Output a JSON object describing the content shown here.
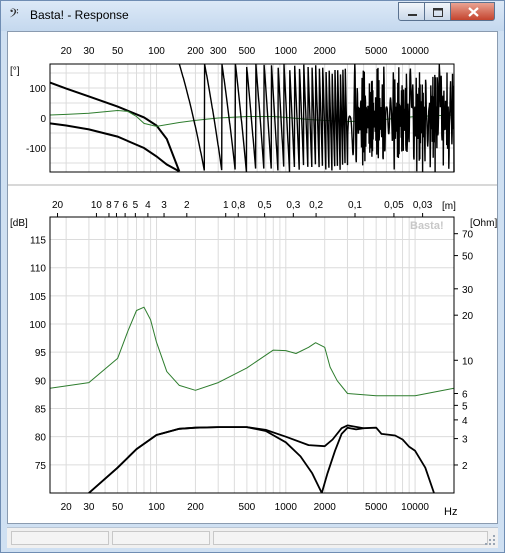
{
  "window": {
    "title": "Basta! - Response",
    "app_icon": "bass-clef-icon",
    "controls": [
      "minimize",
      "maximize",
      "close"
    ]
  },
  "phase_chart": {
    "y_unit": "[°]",
    "y_ticks": [
      "100",
      "0",
      "-100"
    ],
    "x_ticks": [
      "20",
      "30",
      "50",
      "100",
      "200",
      "300",
      "500",
      "1000",
      "2000",
      "5000",
      "10000"
    ]
  },
  "main_chart": {
    "left_unit": "[dB]",
    "right_unit": "[Ohm]",
    "top_unit": "[m]",
    "watermark": "Basta!",
    "db_ticks": [
      "115",
      "110",
      "105",
      "100",
      "95",
      "90",
      "85",
      "80",
      "75"
    ],
    "ohm_ticks": [
      "70",
      "50",
      "30",
      "20",
      "10",
      "6",
      "5",
      "4",
      "3",
      "2"
    ],
    "wavelength_ticks": [
      "20",
      "10",
      "8",
      "7",
      "6",
      "5",
      "4",
      "3",
      "2",
      "1",
      "0,8",
      "0,5",
      "0,3",
      "0,2",
      "0,1",
      "0,05",
      "0,03"
    ],
    "freq_ticks": [
      "20",
      "30",
      "50",
      "100",
      "200",
      "500",
      "1000",
      "2000",
      "5000",
      "10000"
    ],
    "freq_unit": "Hz"
  },
  "chart_data": [
    {
      "type": "line",
      "title": "",
      "xlabel": "",
      "ylabel": "[°]",
      "xscale": "log",
      "xlim": [
        15,
        20000
      ],
      "ylim": [
        -180,
        180
      ],
      "grid": true,
      "series": [
        {
          "color": "#000000",
          "x": [
            15,
            20,
            30,
            50,
            80,
            100,
            120,
            150
          ],
          "y": [
            118,
            98,
            72,
            38,
            2,
            -25,
            -70,
            -178
          ]
        },
        {
          "color": "#000000",
          "x": [
            15,
            20,
            30,
            50,
            80,
            100,
            120,
            150
          ],
          "y": [
            -18,
            -25,
            -38,
            -62,
            -100,
            -128,
            -155,
            -178
          ]
        },
        {
          "color": "#2e7d2e",
          "x": [
            15,
            20,
            30,
            50,
            60,
            70,
            80,
            100,
            150,
            200,
            300,
            500,
            800,
            1000,
            1500,
            2000,
            3000,
            5000,
            10000,
            20000
          ],
          "y": [
            10,
            12,
            16,
            25,
            22,
            5,
            -18,
            -28,
            -15,
            -8,
            0,
            5,
            5,
            2,
            -5,
            -8,
            -12,
            -8,
            5,
            10
          ]
        }
      ]
    },
    {
      "type": "line",
      "title": "",
      "xlabel": "Hz",
      "ylabel": "[dB]",
      "y2label": "[Ohm]",
      "xscale": "log",
      "xlim": [
        15,
        20000
      ],
      "ylim": [
        70,
        119
      ],
      "grid": true,
      "series": [
        {
          "color": "#2e7d2e",
          "axis": "ohm",
          "x": [
            15,
            30,
            50,
            60,
            70,
            80,
            90,
            100,
            120,
            150,
            200,
            300,
            500,
            800,
            1000,
            1200,
            1500,
            1700,
            2000,
            2200,
            2500,
            3000,
            5000,
            10000,
            20000
          ],
          "y": [
            6.5,
            7.1,
            10.3,
            15.6,
            21.5,
            22.6,
            18.6,
            13.2,
            8.4,
            6.8,
            6.3,
            7.1,
            8.9,
            11.7,
            11.6,
            11.1,
            12.2,
            13.1,
            12.2,
            9.0,
            7.3,
            6.0,
            5.8,
            5.8,
            6.5
          ]
        },
        {
          "color": "#000000",
          "axis": "db",
          "x": [
            30,
            50,
            70,
            100,
            150,
            200,
            300,
            500,
            700,
            1000,
            1500,
            2000,
            2300,
            2700,
            3000,
            4000,
            5000,
            5500,
            7000,
            8000,
            9000,
            10000,
            12000,
            14000
          ],
          "y": [
            70,
            74.5,
            77.8,
            80.3,
            81.4,
            81.6,
            81.7,
            81.7,
            81.2,
            80.0,
            78.5,
            78.3,
            79.5,
            81.5,
            82.0,
            81.5,
            81.6,
            80.5,
            80.2,
            79.5,
            78.2,
            77.5,
            74.5,
            70
          ]
        },
        {
          "color": "#000000",
          "axis": "db",
          "x": [
            30,
            50,
            70,
            100,
            150,
            200,
            300,
            500,
            700,
            1000,
            1300,
            1600,
            1900
          ],
          "y": [
            70,
            74.5,
            77.8,
            80.3,
            81.4,
            81.6,
            81.7,
            81.7,
            81.0,
            79.0,
            76.5,
            73.5,
            70
          ]
        },
        {
          "color": "#000000",
          "axis": "db",
          "x": [
            1900,
            2100,
            2400,
            2700,
            3000,
            3500,
            4000
          ],
          "y": [
            70,
            73.5,
            77.5,
            80.5,
            81.6,
            81.3,
            81.5
          ]
        }
      ]
    }
  ]
}
